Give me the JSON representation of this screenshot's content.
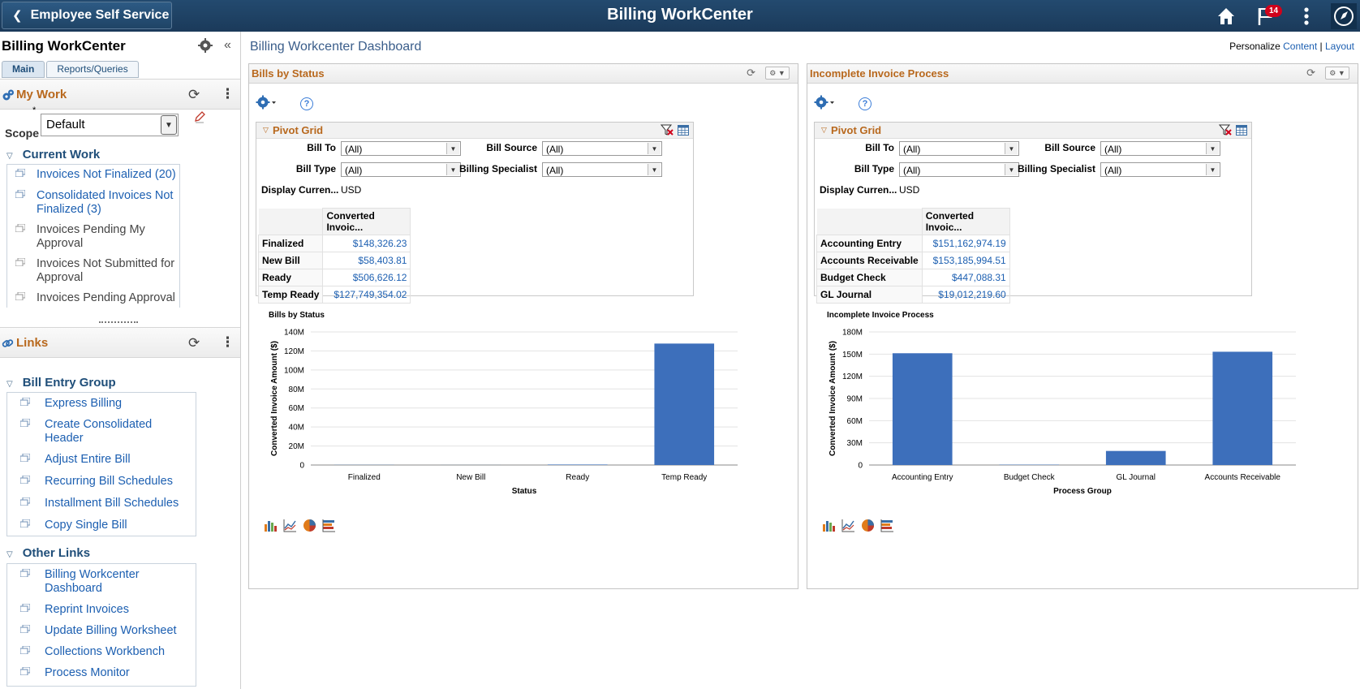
{
  "header": {
    "back_label": "Employee Self Service",
    "title": "Billing WorkCenter",
    "notification_count": "14"
  },
  "left": {
    "title": "Billing WorkCenter",
    "tabs": [
      {
        "label": "Main"
      },
      {
        "label": "Reports/Queries"
      }
    ],
    "my_work": {
      "title": "My Work",
      "required_marker": "*",
      "scope_value": "Default",
      "scope_label": "Scope",
      "group_title": "Current Work",
      "items": [
        {
          "text": "Invoices Not Finalized (20)"
        },
        {
          "text": "Consolidated Invoices Not Finalized (3)"
        },
        {
          "text": "Invoices Pending My Approval"
        },
        {
          "text": "Invoices Not Submitted for Approval"
        },
        {
          "text": "Invoices Pending Approval"
        }
      ]
    },
    "links": {
      "title": "Links",
      "groups": [
        {
          "title": "Bill Entry Group",
          "items": [
            {
              "text": "Express Billing"
            },
            {
              "text": "Create Consolidated Header"
            },
            {
              "text": "Adjust Entire Bill"
            },
            {
              "text": "Recurring Bill Schedules"
            },
            {
              "text": "Installment Bill Schedules"
            },
            {
              "text": "Copy Single Bill"
            }
          ]
        },
        {
          "title": "Other Links",
          "items": [
            {
              "text": "Billing Workcenter Dashboard"
            },
            {
              "text": "Reprint Invoices"
            },
            {
              "text": "Update Billing Worksheet"
            },
            {
              "text": "Collections Workbench"
            },
            {
              "text": "Process Monitor"
            }
          ]
        }
      ]
    }
  },
  "main": {
    "dashboard_title": "Billing Workcenter Dashboard",
    "personalize_label": "Personalize",
    "content_link": "Content",
    "separator": "|",
    "layout_link": "Layout",
    "pagelets": [
      {
        "title": "Bills by Status",
        "help_glyph": "?",
        "pivot_title": "Pivot Grid",
        "filters": {
          "bill_to_label": "Bill To",
          "bill_to_value": "(All)",
          "bill_source_label": "Bill Source",
          "bill_source_value": "(All)",
          "bill_type_label": "Bill Type",
          "bill_type_value": "(All)",
          "billing_specialist_label": "Billing Specialist",
          "billing_specialist_value": "(All)",
          "currency_label": "Display Curren...",
          "currency_value": "USD"
        },
        "column_header": "Converted Invoic...",
        "rows": [
          {
            "label": "Finalized",
            "value": "$148,326.23"
          },
          {
            "label": "New Bill",
            "value": "$58,403.81"
          },
          {
            "label": "Ready",
            "value": "$506,626.12"
          },
          {
            "label": "Temp Ready",
            "value": "$127,749,354.02"
          }
        ]
      },
      {
        "title": "Incomplete Invoice Process",
        "help_glyph": "?",
        "pivot_title": "Pivot Grid",
        "filters": {
          "bill_to_label": "Bill To",
          "bill_to_value": "(All)",
          "bill_source_label": "Bill Source",
          "bill_source_value": "(All)",
          "bill_type_label": "Bill Type",
          "bill_type_value": "(All)",
          "billing_specialist_label": "Billing Specialist",
          "billing_specialist_value": "(All)",
          "currency_label": "Display Curren...",
          "currency_value": "USD"
        },
        "column_header": "Converted Invoic...",
        "rows": [
          {
            "label": "Accounting Entry",
            "value": "$151,162,974.19"
          },
          {
            "label": "Accounts Receivable",
            "value": "$153,185,994.51"
          },
          {
            "label": "Budget Check",
            "value": "$447,088.31"
          },
          {
            "label": "GL Journal",
            "value": "$19,012,219.60"
          }
        ]
      }
    ]
  },
  "chart_data": [
    {
      "type": "bar",
      "title": "Bills by Status",
      "xlabel": "Status",
      "ylabel": "Converted Invoice Amount ($)",
      "categories": [
        "Finalized",
        "New Bill",
        "Ready",
        "Temp Ready"
      ],
      "values": [
        148326.23,
        58403.81,
        506626.12,
        127749354.02
      ],
      "ylim": [
        0,
        140000000
      ],
      "yticks": [
        0,
        20000000,
        40000000,
        60000000,
        80000000,
        100000000,
        120000000,
        140000000
      ],
      "ytick_labels": [
        "0",
        "20M",
        "40M",
        "60M",
        "80M",
        "100M",
        "120M",
        "140M"
      ],
      "color": "#3d6fbb",
      "grid": true
    },
    {
      "type": "bar",
      "title": "Incomplete Invoice Process",
      "xlabel": "Process Group",
      "ylabel": "Converted Invoice Amount ($)",
      "categories": [
        "Accounting Entry",
        "Budget Check",
        "GL Journal",
        "Accounts Receivable"
      ],
      "values": [
        151162974.19,
        447088.31,
        19012219.6,
        153185994.51
      ],
      "ylim": [
        0,
        180000000
      ],
      "yticks": [
        0,
        30000000,
        60000000,
        90000000,
        120000000,
        150000000,
        180000000
      ],
      "ytick_labels": [
        "0",
        "30M",
        "60M",
        "90M",
        "120M",
        "150M",
        "180M"
      ],
      "color": "#3d6fbb",
      "grid": true
    }
  ]
}
